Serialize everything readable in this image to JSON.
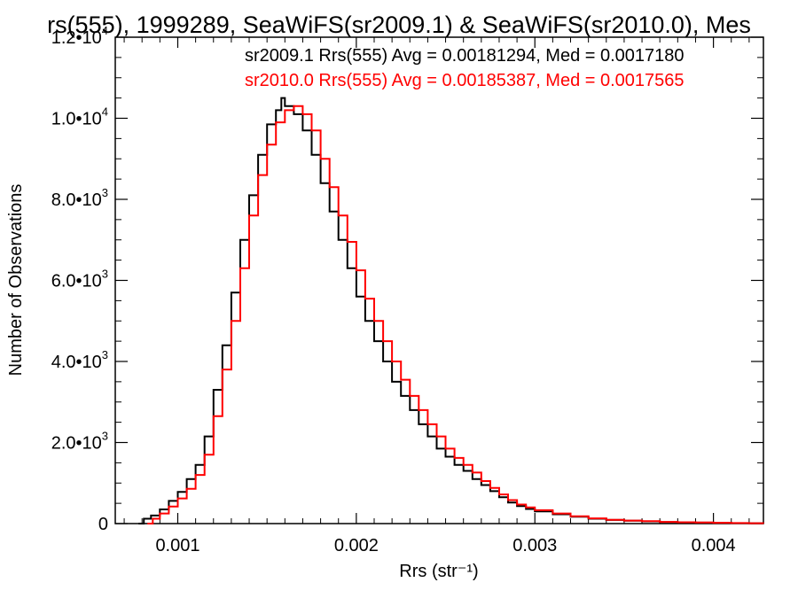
{
  "chart_data": {
    "type": "histogram-step",
    "title": "rs(555), 1999289, SeaWiFS(sr2009.1) & SeaWiFS(sr2010.0), Mes",
    "xlabel": "Rrs (str⁻¹)",
    "ylabel": "Number of Observations",
    "xlim": [
      0.00065,
      0.00428
    ],
    "ylim": [
      0,
      12000
    ],
    "x_ticks": [
      {
        "value": 0.001,
        "label": "0.001"
      },
      {
        "value": 0.002,
        "label": "0.002"
      },
      {
        "value": 0.003,
        "label": "0.003"
      },
      {
        "value": 0.004,
        "label": "0.004"
      }
    ],
    "y_ticks": [
      {
        "value": 0,
        "label": "0",
        "exp": ""
      },
      {
        "value": 2000,
        "label": "2.0•10",
        "exp": "3"
      },
      {
        "value": 4000,
        "label": "4.0•10",
        "exp": "3"
      },
      {
        "value": 6000,
        "label": "6.0•10",
        "exp": "3"
      },
      {
        "value": 8000,
        "label": "8.0•10",
        "exp": "3"
      },
      {
        "value": 10000,
        "label": "1.0•10",
        "exp": "4"
      },
      {
        "value": 12000,
        "label": "1.2•10",
        "exp": "4"
      }
    ],
    "legend": {
      "placement": "top-right",
      "entries": [
        {
          "text": "sr2009.1 Rrs(555) Avg = 0.00181294, Med = 0.0017180",
          "color": "#000000"
        },
        {
          "text": "sr2010.0 Rrs(555) Avg = 0.00185387, Med = 0.0017565",
          "color": "#ff0000"
        }
      ]
    },
    "series": [
      {
        "color": "#000000",
        "points": [
          [
            0.00078,
            0
          ],
          [
            0.00081,
            120
          ],
          [
            0.00085,
            200
          ],
          [
            0.0009,
            350
          ],
          [
            0.00095,
            560
          ],
          [
            0.001,
            780
          ],
          [
            0.00105,
            1100
          ],
          [
            0.0011,
            1450
          ],
          [
            0.00115,
            2150
          ],
          [
            0.0012,
            3300
          ],
          [
            0.00125,
            4400
          ],
          [
            0.0013,
            5700
          ],
          [
            0.00135,
            7000
          ],
          [
            0.0014,
            8100
          ],
          [
            0.00145,
            9100
          ],
          [
            0.0015,
            9850
          ],
          [
            0.00155,
            10200
          ],
          [
            0.00158,
            10500
          ],
          [
            0.0016,
            10300
          ],
          [
            0.00165,
            10100
          ],
          [
            0.0017,
            9700
          ],
          [
            0.00175,
            9100
          ],
          [
            0.0018,
            8400
          ],
          [
            0.00185,
            7700
          ],
          [
            0.0019,
            7000
          ],
          [
            0.00195,
            6300
          ],
          [
            0.002,
            5600
          ],
          [
            0.00205,
            5000
          ],
          [
            0.0021,
            4500
          ],
          [
            0.00215,
            4000
          ],
          [
            0.0022,
            3500
          ],
          [
            0.00225,
            3150
          ],
          [
            0.0023,
            2800
          ],
          [
            0.00235,
            2450
          ],
          [
            0.0024,
            2150
          ],
          [
            0.00245,
            1850
          ],
          [
            0.0025,
            1650
          ],
          [
            0.00255,
            1450
          ],
          [
            0.0026,
            1300
          ],
          [
            0.00265,
            1100
          ],
          [
            0.0027,
            950
          ],
          [
            0.00275,
            800
          ],
          [
            0.0028,
            650
          ],
          [
            0.00285,
            520
          ],
          [
            0.0029,
            430
          ],
          [
            0.00295,
            360
          ],
          [
            0.003,
            300
          ],
          [
            0.0031,
            230
          ],
          [
            0.0032,
            170
          ],
          [
            0.0033,
            120
          ],
          [
            0.0034,
            90
          ],
          [
            0.0035,
            70
          ],
          [
            0.0036,
            55
          ],
          [
            0.0037,
            40
          ],
          [
            0.0038,
            30
          ],
          [
            0.0039,
            25
          ],
          [
            0.004,
            18
          ],
          [
            0.0041,
            12
          ],
          [
            0.0042,
            8
          ],
          [
            0.00428,
            5
          ]
        ]
      },
      {
        "color": "#ff0000",
        "points": [
          [
            0.00083,
            0
          ],
          [
            0.00086,
            120
          ],
          [
            0.0009,
            250
          ],
          [
            0.00095,
            420
          ],
          [
            0.001,
            620
          ],
          [
            0.00105,
            860
          ],
          [
            0.0011,
            1200
          ],
          [
            0.00115,
            1700
          ],
          [
            0.0012,
            2650
          ],
          [
            0.00125,
            3800
          ],
          [
            0.0013,
            5000
          ],
          [
            0.00135,
            6300
          ],
          [
            0.0014,
            7600
          ],
          [
            0.00145,
            8600
          ],
          [
            0.0015,
            9350
          ],
          [
            0.00155,
            9900
          ],
          [
            0.0016,
            10200
          ],
          [
            0.00165,
            10300
          ],
          [
            0.0017,
            10100
          ],
          [
            0.00175,
            9700
          ],
          [
            0.0018,
            9000
          ],
          [
            0.00185,
            8300
          ],
          [
            0.0019,
            7600
          ],
          [
            0.00195,
            6950
          ],
          [
            0.002,
            6250
          ],
          [
            0.00205,
            5550
          ],
          [
            0.0021,
            5000
          ],
          [
            0.00215,
            4500
          ],
          [
            0.0022,
            4000
          ],
          [
            0.00225,
            3550
          ],
          [
            0.0023,
            3150
          ],
          [
            0.00235,
            2800
          ],
          [
            0.0024,
            2450
          ],
          [
            0.00245,
            2150
          ],
          [
            0.0025,
            1850
          ],
          [
            0.00255,
            1620
          ],
          [
            0.0026,
            1450
          ],
          [
            0.00265,
            1260
          ],
          [
            0.0027,
            1050
          ],
          [
            0.00275,
            880
          ],
          [
            0.0028,
            720
          ],
          [
            0.00285,
            580
          ],
          [
            0.0029,
            470
          ],
          [
            0.00295,
            400
          ],
          [
            0.003,
            330
          ],
          [
            0.0031,
            250
          ],
          [
            0.0032,
            180
          ],
          [
            0.0033,
            130
          ],
          [
            0.0034,
            95
          ],
          [
            0.0035,
            75
          ],
          [
            0.0036,
            58
          ],
          [
            0.0037,
            42
          ],
          [
            0.0038,
            32
          ],
          [
            0.0039,
            26
          ],
          [
            0.004,
            19
          ],
          [
            0.0041,
            13
          ],
          [
            0.0042,
            9
          ],
          [
            0.00428,
            5
          ]
        ]
      }
    ]
  }
}
